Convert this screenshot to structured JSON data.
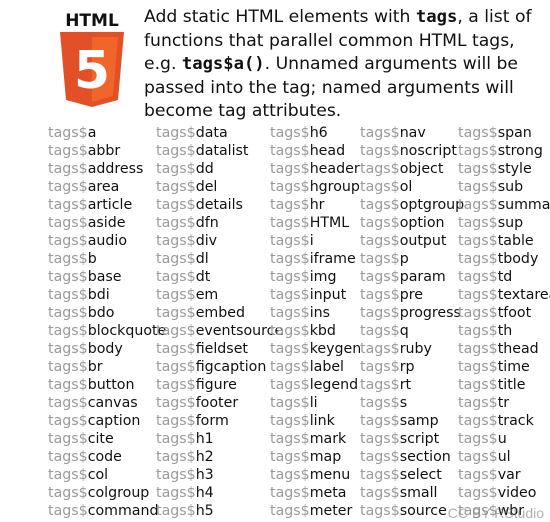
{
  "logo": {
    "label": "HTML",
    "digit": "5"
  },
  "description": {
    "p1": "Add static HTML elements with ",
    "code1": "tags",
    "p2": ", a list of functions that parallel common HTML tags, e.g. ",
    "code2": "tags$a()",
    "p3": ".  Unnamed arguments will be passed into the tag; named arguments will become tag attributes."
  },
  "prefix": "tags$",
  "columns": [
    [
      "a",
      "abbr",
      "address",
      "area",
      "article",
      "aside",
      "audio",
      "b",
      "base",
      "bdi",
      "bdo",
      "blockquote",
      "body",
      "br",
      "button",
      "canvas",
      "caption",
      "cite",
      "code",
      "col",
      "colgroup",
      "command"
    ],
    [
      "data",
      "datalist",
      "dd",
      "del",
      "details",
      "dfn",
      "div",
      "dl",
      "dt",
      "em",
      "embed",
      "eventsource",
      "fieldset",
      "figcaption",
      "figure",
      "footer",
      "form",
      "h1",
      "h2",
      "h3",
      "h4",
      "h5"
    ],
    [
      "h6",
      "head",
      "header",
      "hgroup",
      "hr",
      "HTML",
      "i",
      "iframe",
      "img",
      "input",
      "ins",
      "kbd",
      "keygen",
      "label",
      "legend",
      "li",
      "link",
      "mark",
      "map",
      "menu",
      "meta",
      "meter"
    ],
    [
      "nav",
      "noscript",
      "object",
      "ol",
      "optgroup",
      "option",
      "output",
      "p",
      "param",
      "pre",
      "progress",
      "q",
      "ruby",
      "rp",
      "rt",
      "s",
      "samp",
      "script",
      "section",
      "select",
      "small",
      "source"
    ],
    [
      "span",
      "strong",
      "style",
      "sub",
      "summary",
      "sup",
      "table",
      "tbody",
      "td",
      "textarea",
      "tfoot",
      "th",
      "thead",
      "time",
      "title",
      "tr",
      "track",
      "u",
      "ul",
      "var",
      "video",
      "wbr"
    ]
  ],
  "footer": "CC BY RStudio",
  "colors": {
    "logo_dark": "#e34f26",
    "logo_light": "#f06529",
    "prefix": "#9a9a9a"
  }
}
